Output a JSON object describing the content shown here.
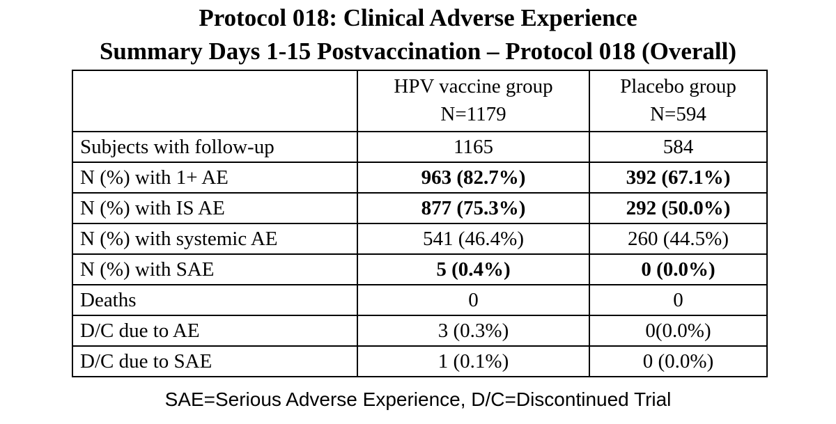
{
  "title": [
    "Protocol 018: Clinical Adverse Experience",
    "Summary Days 1-15 Postvaccination – Protocol 018 (Overall)"
  ],
  "table": {
    "columns": [
      [
        "HPV vaccine group",
        "N=1179"
      ],
      [
        "Placebo group",
        "N=594"
      ]
    ],
    "rows": [
      {
        "label": "Subjects with follow-up",
        "cells": [
          "1165",
          "584"
        ]
      },
      {
        "label": "N (%) with 1+ AE",
        "cells": [
          "963 (82.7%)",
          "392 (67.1%)"
        ],
        "bold": true
      },
      {
        "label": "N (%) with IS AE",
        "cells": [
          "877 (75.3%)",
          "292 (50.0%)"
        ],
        "bold": true
      },
      {
        "label": "N (%) with systemic AE",
        "cells": [
          "541 (46.4%)",
          "260 (44.5%)"
        ]
      },
      {
        "label": "N (%) with SAE",
        "cells": [
          "5 (0.4%)",
          "0 (0.0%)"
        ],
        "bold": true
      },
      {
        "label": "Deaths",
        "cells": [
          "0",
          "0"
        ]
      },
      {
        "label": "D/C due to AE",
        "cells": [
          "3 (0.3%)",
          "0(0.0%)"
        ]
      },
      {
        "label": "D/C due to SAE",
        "cells": [
          "1 (0.1%)",
          "0 (0.0%)"
        ]
      }
    ]
  },
  "footnote": "SAE=Serious Adverse Experience, D/C=Discontinued Trial"
}
